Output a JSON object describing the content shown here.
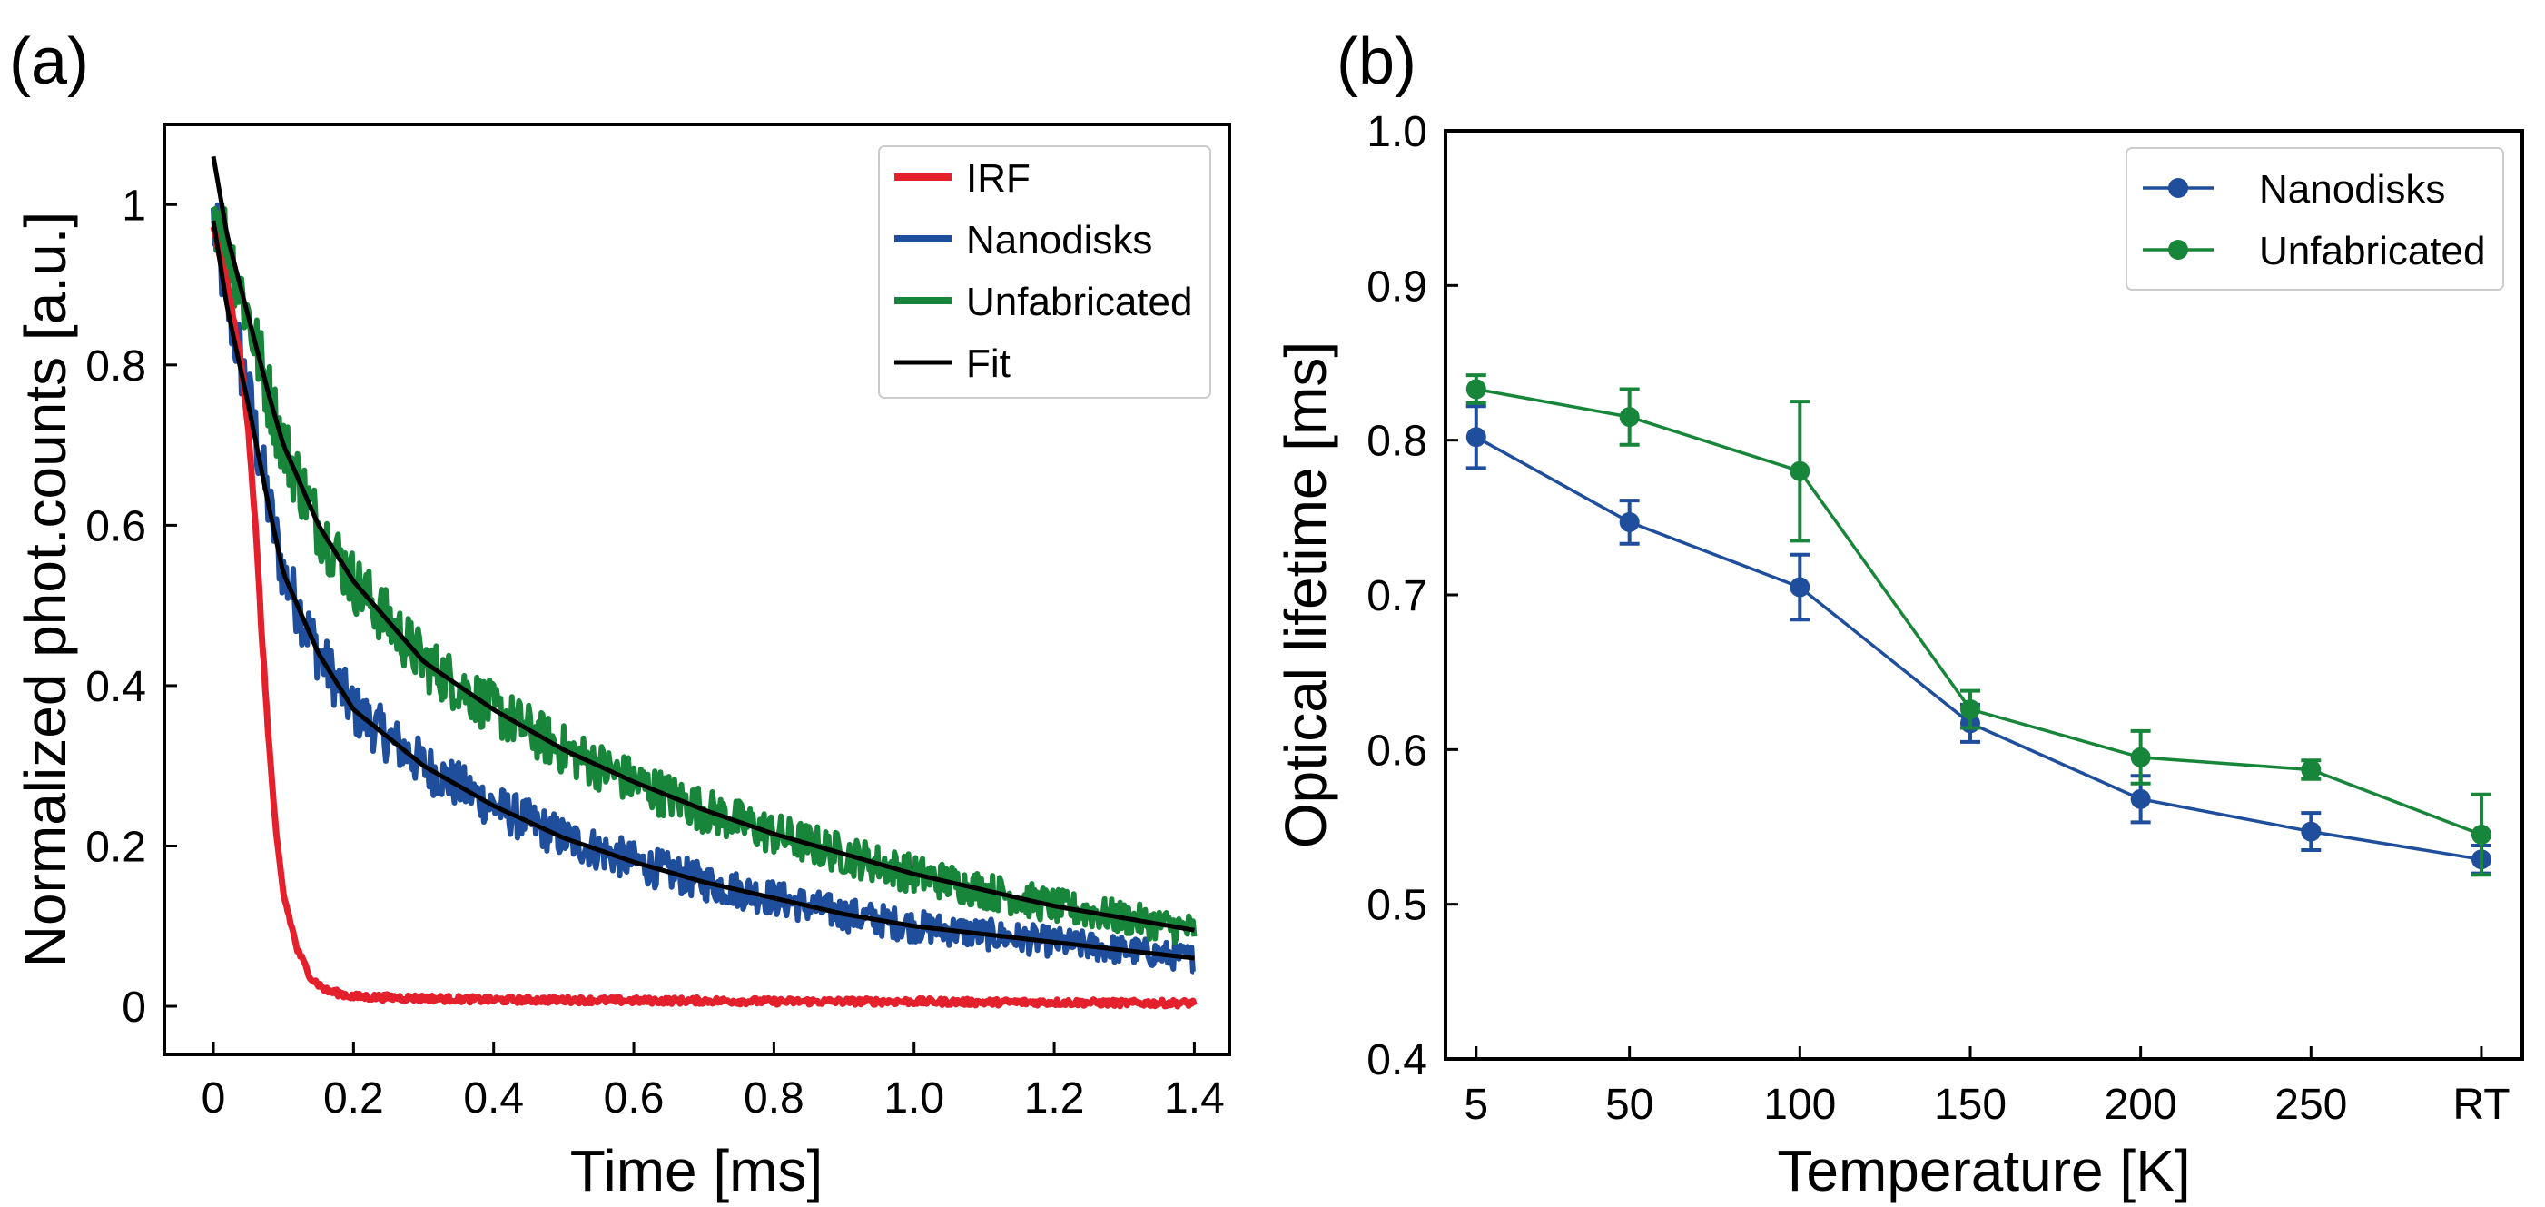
{
  "chart_data": [
    {
      "panel_label": "(a)",
      "type": "line",
      "xlabel": "Time [ms]",
      "ylabel": "Normalized phot.counts [a.u.]",
      "xlim": [
        -0.07,
        1.45
      ],
      "ylim": [
        -0.06,
        1.1
      ],
      "xticks": [
        0,
        0.2,
        0.4,
        0.6,
        0.8,
        1.0,
        1.2,
        1.4
      ],
      "xtick_labels": [
        "0",
        "0.2",
        "0.4",
        "0.6",
        "0.8",
        "1.0",
        "1.2",
        "1.4"
      ],
      "yticks": [
        0,
        0.2,
        0.4,
        0.6,
        0.8,
        1
      ],
      "ytick_labels": [
        "0",
        "0.2",
        "0.4",
        "0.6",
        "0.8",
        "1"
      ],
      "legend_position": "top-right",
      "series": [
        {
          "name": "IRF",
          "color": "#e3202b",
          "kind": "noisy",
          "x": [
            0,
            0.02,
            0.04,
            0.05,
            0.06,
            0.07,
            0.08,
            0.09,
            0.1,
            0.12,
            0.14,
            0.16,
            0.2,
            0.3,
            0.4,
            0.5,
            0.6,
            0.7,
            0.8,
            0.9,
            1.0,
            1.1,
            1.2,
            1.3,
            1.4
          ],
          "y": [
            0.97,
            0.9,
            0.8,
            0.72,
            0.6,
            0.45,
            0.32,
            0.21,
            0.14,
            0.07,
            0.035,
            0.02,
            0.012,
            0.01,
            0.008,
            0.008,
            0.007,
            0.007,
            0.006,
            0.006,
            0.006,
            0.005,
            0.005,
            0.004,
            0.004
          ]
        },
        {
          "name": "Nanodisks",
          "color": "#1f4e9c",
          "kind": "noisy",
          "x": [
            0,
            0.02,
            0.05,
            0.08,
            0.1,
            0.15,
            0.2,
            0.3,
            0.4,
            0.5,
            0.6,
            0.7,
            0.8,
            0.9,
            1.0,
            1.1,
            1.2,
            1.3,
            1.4
          ],
          "y": [
            0.98,
            0.88,
            0.76,
            0.62,
            0.54,
            0.44,
            0.37,
            0.3,
            0.25,
            0.21,
            0.18,
            0.155,
            0.135,
            0.115,
            0.1,
            0.09,
            0.08,
            0.07,
            0.06
          ]
        },
        {
          "name": "Unfabricated",
          "color": "#18863a",
          "kind": "noisy",
          "x": [
            0,
            0.02,
            0.05,
            0.08,
            0.1,
            0.15,
            0.2,
            0.3,
            0.4,
            0.5,
            0.6,
            0.7,
            0.8,
            0.9,
            1.0,
            1.1,
            1.2,
            1.3,
            1.4
          ],
          "y": [
            1.0,
            0.95,
            0.86,
            0.76,
            0.7,
            0.6,
            0.53,
            0.43,
            0.37,
            0.32,
            0.28,
            0.245,
            0.215,
            0.19,
            0.165,
            0.145,
            0.125,
            0.11,
            0.095
          ]
        },
        {
          "name": "Fit",
          "color": "#000000",
          "kind": "smooth",
          "x": [
            0,
            0.02,
            0.05,
            0.08,
            0.1,
            0.15,
            0.2,
            0.3,
            0.4,
            0.5,
            0.6,
            0.7,
            0.8,
            0.9,
            1.0,
            1.1,
            1.2,
            1.3,
            1.4
          ],
          "y": [
            0.98,
            0.87,
            0.75,
            0.62,
            0.54,
            0.44,
            0.37,
            0.3,
            0.25,
            0.21,
            0.18,
            0.155,
            0.135,
            0.115,
            0.1,
            0.09,
            0.08,
            0.07,
            0.06
          ],
          "y2": [
            1.06,
            0.96,
            0.86,
            0.76,
            0.7,
            0.6,
            0.53,
            0.43,
            0.37,
            0.32,
            0.28,
            0.245,
            0.215,
            0.19,
            0.165,
            0.145,
            0.125,
            0.11,
            0.095
          ]
        }
      ]
    },
    {
      "panel_label": "(b)",
      "type": "line",
      "xlabel": "Temperature [K]",
      "ylabel": "Optical lifetime [ms]",
      "categories": [
        "5",
        "50",
        "100",
        "150",
        "200",
        "250",
        "RT"
      ],
      "x_positions": [
        5,
        50,
        100,
        150,
        200,
        250,
        300
      ],
      "xlim": [
        -4,
        312
      ],
      "ylim": [
        0.4,
        1.0
      ],
      "yticks": [
        0.4,
        0.5,
        0.6,
        0.7,
        0.8,
        0.9,
        1.0
      ],
      "ytick_labels": [
        "0.4",
        "0.5",
        "0.6",
        "0.7",
        "0.8",
        "0.9",
        "1.0"
      ],
      "legend_position": "top-right",
      "series": [
        {
          "name": "Nanodisks",
          "color": "#1f4e9c",
          "values": [
            0.802,
            0.747,
            0.705,
            0.617,
            0.568,
            0.547,
            0.529
          ],
          "errors": [
            0.02,
            0.014,
            0.021,
            0.012,
            0.015,
            0.012,
            0.009
          ]
        },
        {
          "name": "Unfabricated",
          "color": "#18863a",
          "values": [
            0.833,
            0.815,
            0.78,
            0.626,
            0.595,
            0.587,
            0.545
          ],
          "errors": [
            0.009,
            0.018,
            0.045,
            0.012,
            0.017,
            0.006,
            0.026
          ]
        }
      ]
    }
  ]
}
